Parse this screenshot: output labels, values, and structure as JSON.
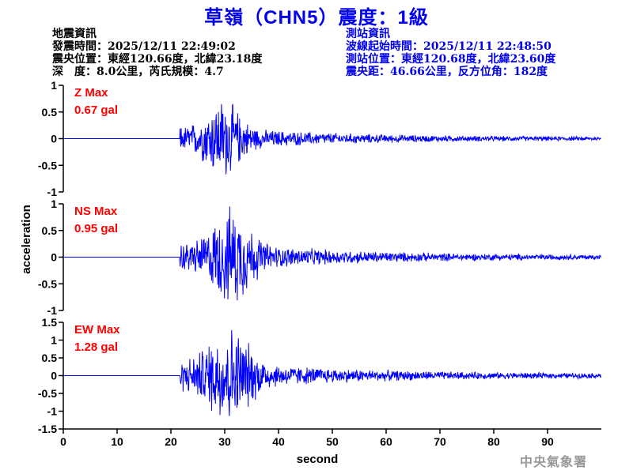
{
  "title": "草嶺（CHN5）震度：1級",
  "quake_info": {
    "heading": "地震資訊",
    "origin_time": "發震時間：2025/12/11 22:49:02",
    "epicenter": "震央位置：東經120.66度，北緯23.18度",
    "depth_magnitude": "深　度：8.0公里，芮氏規模：4.7"
  },
  "station_info": {
    "heading": "測站資訊",
    "wave_start": "波線起始時間：2025/12/11 22:48:50",
    "location": "測站位置：東經120.68度，北緯23.60度",
    "distance": "震央距：46.66公里，反方位角：182度"
  },
  "watermark": "中央氣象署",
  "chart_data": {
    "type": "line",
    "xlabel": "second",
    "ylabel": "acceleration",
    "xlim": [
      0,
      100
    ],
    "xticks": [
      "0",
      "10",
      "20",
      "30",
      "40",
      "50",
      "60",
      "70",
      "80",
      "90"
    ],
    "grid": false,
    "line_color": "#0000ff",
    "panels": [
      {
        "component": "Z",
        "max_label": "Z Max",
        "max_value": "0.67 gal",
        "max": 0.67,
        "ylim": [
          -1,
          1
        ],
        "yticks": [
          "1",
          "0.5",
          "0",
          "-0.5",
          "-1"
        ]
      },
      {
        "component": "NS",
        "max_label": "NS Max",
        "max_value": "0.95 gal",
        "max": 0.95,
        "ylim": [
          -1,
          1
        ],
        "yticks": [
          "1",
          "0.5",
          "0",
          "-0.5",
          "-1"
        ]
      },
      {
        "component": "EW",
        "max_label": "EW Max",
        "max_value": "1.28 gal",
        "max": 1.28,
        "ylim": [
          -1.5,
          1.5
        ],
        "yticks": [
          "1.5",
          "1",
          "0.5",
          "0",
          "-0.5",
          "-1",
          "-1.5"
        ]
      }
    ]
  }
}
